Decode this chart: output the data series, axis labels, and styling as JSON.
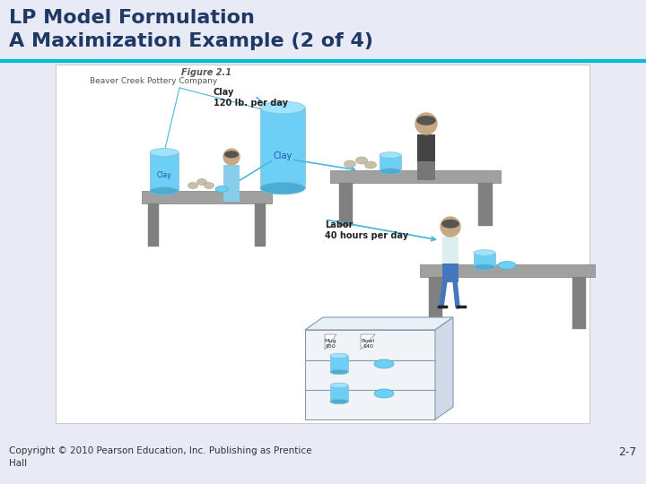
{
  "title_line1": "LP Model Formulation",
  "title_line2": "A Maximization Example (2 of 4)",
  "title_color": "#1F3864",
  "title_fontsize": 16,
  "bg_color": "#E8EAF6",
  "separator_color": "#00BCD4",
  "separator_linewidth": 3,
  "figure_label": "Figure 2.1",
  "figure_sublabel": "Beaver Creek Pottery Company",
  "clay_label_top": "Clay\n120 lb. per day",
  "clay_label_cyl1": "Clay",
  "clay_label_cyl2": "Clay",
  "labor_label": "Labor\n40 hours per day",
  "mug_label": "Mug\n$50",
  "bowl_label": "Bowl\n$40",
  "footer_text": "Copyright © 2010 Pearson Education, Inc. Publishing as Prentice\nHall",
  "page_number": "2-7",
  "footer_fontsize": 7.5,
  "page_fontsize": 9,
  "blue_cyl_face": "#6ECFF6",
  "blue_cyl_top": "#9EE4FF",
  "blue_cyl_bot": "#4AAED4",
  "table_face": "#A0A0A0",
  "table_dark": "#808080",
  "arrow_color": "#4AB8D8",
  "label_bold_fs": 7,
  "label_fs": 6.5,
  "person_skin": "#C8A882",
  "person_hair": "#555555"
}
